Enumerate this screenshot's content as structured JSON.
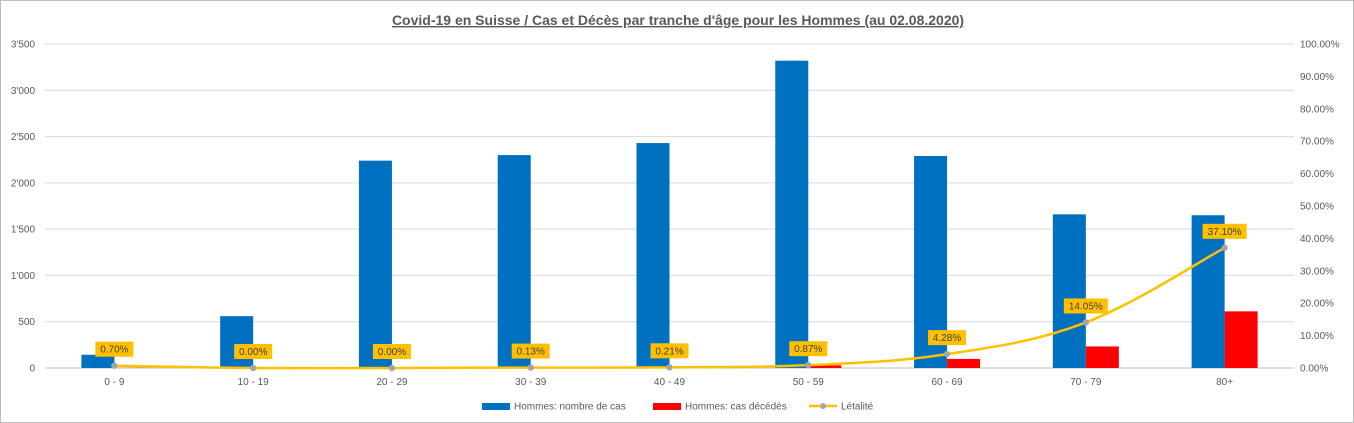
{
  "chart_data": {
    "type": "bar",
    "title": "Covid-19 en Suisse / Cas et Décès par tranche d'âge pour les Hommes (au 02.08.2020)",
    "categories": [
      "0 - 9",
      "10 - 19",
      "20 - 29",
      "30 - 39",
      "40 - 49",
      "50 - 59",
      "60 - 69",
      "70 - 79",
      "80+"
    ],
    "series": [
      {
        "name": "Hommes: nombre de cas",
        "type": "bar",
        "axis": "left",
        "color": "#0070c0",
        "values": [
          143,
          560,
          2240,
          2300,
          2430,
          3320,
          2290,
          1660,
          1650
        ]
      },
      {
        "name": "Hommes: cas décédés",
        "type": "bar",
        "axis": "left",
        "color": "#ff0000",
        "values": [
          1,
          0,
          0,
          3,
          5,
          29,
          98,
          233,
          612
        ]
      },
      {
        "name": "Létalité",
        "type": "line",
        "axis": "right",
        "color": "#ffc000",
        "values": [
          0.7,
          0.0,
          0.0,
          0.13,
          0.21,
          0.87,
          4.28,
          14.05,
          37.1
        ],
        "data_labels": [
          "0.70%",
          "0.00%",
          "0.00%",
          "0.13%",
          "0.21%",
          "0.87%",
          "4.28%",
          "14.05%",
          "37.10%"
        ]
      }
    ],
    "y_left": {
      "ylim": [
        0,
        3500
      ],
      "ticks": [
        0,
        500,
        1000,
        1500,
        2000,
        2500,
        3000,
        3500
      ],
      "tick_labels": [
        "0",
        "500",
        "1'000",
        "1'500",
        "2'000",
        "2'500",
        "3'000",
        "3'500"
      ]
    },
    "y_right": {
      "ylim": [
        0,
        100
      ],
      "ticks": [
        0,
        10,
        20,
        30,
        40,
        50,
        60,
        70,
        80,
        90,
        100
      ],
      "tick_labels": [
        "0.00%",
        "10.00%",
        "20.00%",
        "30.00%",
        "40.00%",
        "50.00%",
        "60.00%",
        "70.00%",
        "80.00%",
        "90.00%",
        "100.00%"
      ]
    },
    "grid": true,
    "legend": "bottom",
    "label_box_color": "#ffc000",
    "marker_color": "#a5a5a5"
  }
}
